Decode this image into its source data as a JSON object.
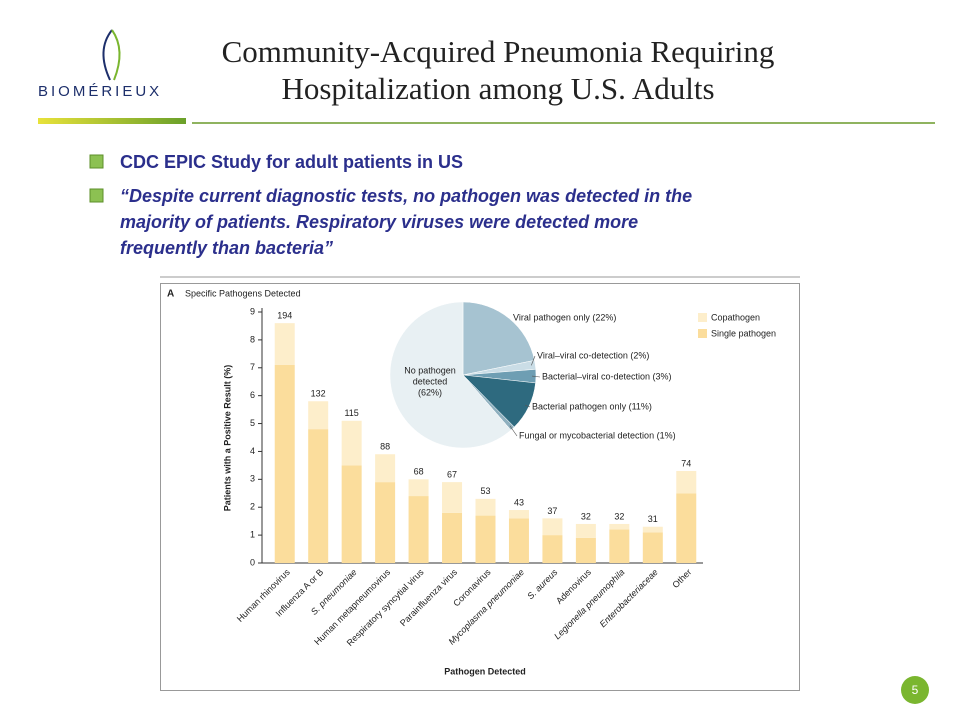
{
  "slide": {
    "logo": "BIOMÉRIEUX",
    "title": [
      "Community-Acquired Pneumonia Requiring",
      "Hospitalization among U.S. Adults"
    ],
    "bullets": [
      "CDC EPIC Study for adult patients in US",
      [
        "“Despite current diagnostic tests, no pathogen was detected in the",
        "majority of patients. Respiratory viruses were detected more",
        "frequently than bacteria”"
      ]
    ],
    "page_number": "5"
  },
  "chart_data": [
    {
      "type": "bar",
      "panel": "A",
      "title": "Specific Pathogens Detected",
      "y_label": "Patients with a Positive Result (%)",
      "x_label": "Pathogen Detected",
      "categories": [
        "Human rhinovirus",
        "Influenza A or B",
        "S. pneumoniae",
        "Human metapneumovirus",
        "Respiratory syncytial virus",
        "Parainfluenza virus",
        "Coronavirus",
        "Mycoplasma pneumoniae",
        "S. aureus",
        "Adenovirus",
        "Legionella pneumophila",
        "Enterobacteriaceae",
        "Other"
      ],
      "series": [
        {
          "name": "Single pathogen",
          "color": "#fbdd9c",
          "values": [
            7.1,
            4.8,
            3.5,
            2.9,
            2.4,
            1.8,
            1.7,
            1.6,
            1.0,
            0.9,
            1.2,
            1.1,
            2.5
          ]
        },
        {
          "name": "Copathogen",
          "color": "#fdeecb",
          "values": [
            1.5,
            1.0,
            1.6,
            1.0,
            0.6,
            1.1,
            0.6,
            0.3,
            0.6,
            0.5,
            0.2,
            0.2,
            0.8
          ]
        }
      ],
      "counts": [
        194,
        132,
        115,
        88,
        68,
        67,
        53,
        43,
        37,
        32,
        32,
        31,
        74
      ],
      "ylim": [
        0,
        9
      ],
      "yticks": [
        0,
        1,
        2,
        3,
        4,
        5,
        6,
        7,
        8,
        9
      ],
      "stacked": true,
      "legend": "top-right"
    },
    {
      "type": "pie",
      "labels": [
        "Viral pathogen only (22%)",
        "Viral–viral co-detection (2%)",
        "Bacterial–viral co-detection (3%)",
        "Bacterial pathogen only (11%)",
        "Fungal or mycobacterial detection (1%)",
        [
          "No pathogen",
          "detected",
          "(62%)"
        ]
      ],
      "values": [
        22,
        2,
        3,
        11,
        1,
        62
      ],
      "colors": [
        "#a6c3d1",
        "#cadde6",
        "#6e9eb3",
        "#2e6a7f",
        "#8fb0bf",
        "#e8f0f3"
      ]
    }
  ]
}
